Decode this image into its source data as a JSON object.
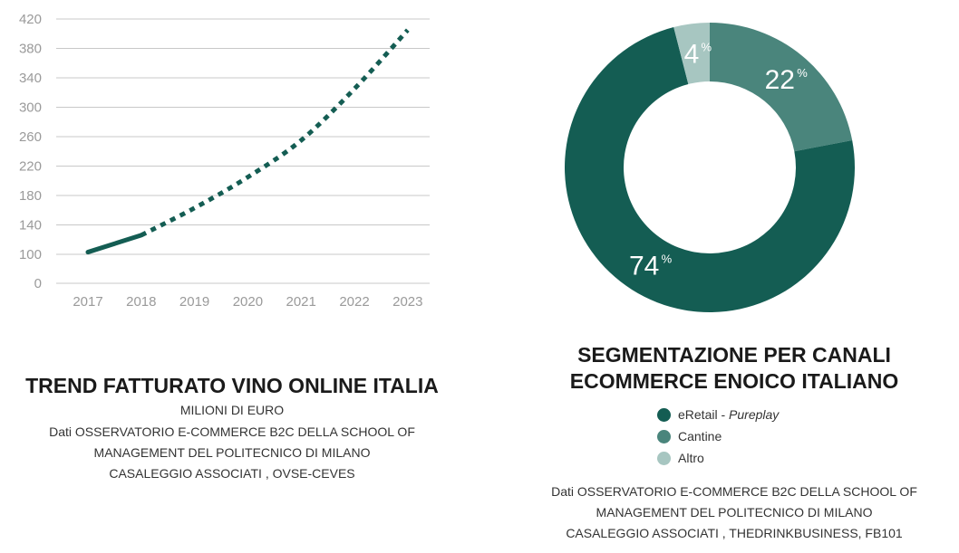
{
  "chart_data": [
    {
      "type": "line",
      "title": "TREND FATTURATO VINO ONLINE ITALIA",
      "subtitle": "MILIONI DI EURO",
      "source_lines": [
        "Dati OSSERVATORIO E-COMMERCE B2C DELLA SCHOOL OF",
        "MANAGEMENT DEL POLITECNICO DI MILANO",
        "CASALEGGIO ASSOCIATI , OVSE-CEVES"
      ],
      "x": [
        "2017",
        "2018",
        "2019",
        "2020",
        "2021",
        "2022",
        "2023"
      ],
      "ylim": [
        0,
        420
      ],
      "yticks": [
        0,
        100,
        140,
        180,
        220,
        260,
        300,
        340,
        380,
        420
      ],
      "series": [
        {
          "values": [
            103,
            126,
            163,
            205,
            255,
            325,
            405
          ],
          "solid_until_index": 1,
          "color": "#145d53"
        }
      ],
      "grid": true
    },
    {
      "type": "pie",
      "style": "donut",
      "title_lines": [
        "SEGMENTAZIONE PER CANALI",
        "ECOMMERCE ENOICO ITALIANO"
      ],
      "slices": [
        {
          "label": "eRetail",
          "label_suffix": "Pureplay",
          "value": 74,
          "color": "#145d53"
        },
        {
          "label": "Cantine",
          "value": 22,
          "color": "#4a857c"
        },
        {
          "label": "Altro",
          "value": 4,
          "color": "#a7c6c1"
        }
      ],
      "value_suffix": "%",
      "legend": "bottom",
      "source_lines": [
        "Dati OSSERVATORIO E-COMMERCE B2C DELLA SCHOOL OF",
        "MANAGEMENT DEL POLITECNICO DI MILANO",
        "CASALEGGIO ASSOCIATI , THEDRINKBUSINESS, FB101"
      ]
    }
  ]
}
